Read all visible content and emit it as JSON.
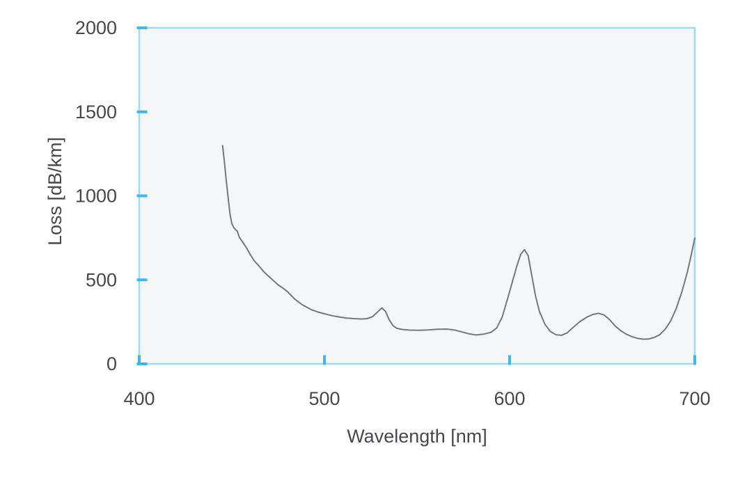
{
  "chart_data": {
    "type": "line",
    "title": "",
    "xlabel": "Wavelength [nm]",
    "ylabel": "Loss [dB/km]",
    "xlim": [
      400,
      700
    ],
    "ylim": [
      0,
      2000
    ],
    "x_ticks": [
      400,
      500,
      600,
      700
    ],
    "y_ticks": [
      0,
      500,
      1000,
      1500,
      2000
    ],
    "grid": false,
    "legend": false,
    "colors": {
      "plot_background": "#f5f6f8",
      "axis_border": "#9edcf5",
      "tick_mark": "#3db7ec",
      "curve": "#76777a",
      "text": "#47484e",
      "page_background": "#ffffff"
    },
    "series": [
      {
        "name": "fiber-attenuation-loss",
        "points": [
          [
            445,
            1300
          ],
          [
            446,
            1200
          ],
          [
            447,
            1090
          ],
          [
            448,
            990
          ],
          [
            449,
            893
          ],
          [
            450,
            835
          ],
          [
            451,
            812
          ],
          [
            452,
            800
          ],
          [
            453,
            788
          ],
          [
            454,
            755
          ],
          [
            456,
            722
          ],
          [
            458,
            688
          ],
          [
            460,
            650
          ],
          [
            462,
            615
          ],
          [
            465,
            578
          ],
          [
            467,
            552
          ],
          [
            469,
            530
          ],
          [
            472,
            500
          ],
          [
            475,
            470
          ],
          [
            478,
            448
          ],
          [
            480,
            430
          ],
          [
            482,
            408
          ],
          [
            484,
            385
          ],
          [
            486,
            368
          ],
          [
            488,
            352
          ],
          [
            490,
            340
          ],
          [
            493,
            322
          ],
          [
            496,
            310
          ],
          [
            500,
            298
          ],
          [
            504,
            287
          ],
          [
            508,
            279
          ],
          [
            512,
            273
          ],
          [
            516,
            269
          ],
          [
            520,
            267
          ],
          [
            523,
            269
          ],
          [
            526,
            281
          ],
          [
            529,
            312
          ],
          [
            531,
            333
          ],
          [
            533,
            312
          ],
          [
            535,
            262
          ],
          [
            537,
            228
          ],
          [
            539,
            212
          ],
          [
            542,
            205
          ],
          [
            546,
            201
          ],
          [
            551,
            200
          ],
          [
            556,
            202
          ],
          [
            561,
            206
          ],
          [
            566,
            207
          ],
          [
            570,
            202
          ],
          [
            574,
            191
          ],
          [
            578,
            179
          ],
          [
            582,
            172
          ],
          [
            586,
            177
          ],
          [
            590,
            188
          ],
          [
            593,
            213
          ],
          [
            596,
            280
          ],
          [
            599,
            390
          ],
          [
            602,
            508
          ],
          [
            604,
            585
          ],
          [
            606,
            652
          ],
          [
            608,
            680
          ],
          [
            610,
            645
          ],
          [
            612,
            525
          ],
          [
            614,
            405
          ],
          [
            616,
            315
          ],
          [
            619,
            237
          ],
          [
            622,
            193
          ],
          [
            625,
            173
          ],
          [
            628,
            170
          ],
          [
            631,
            184
          ],
          [
            634,
            214
          ],
          [
            638,
            252
          ],
          [
            642,
            280
          ],
          [
            645,
            294
          ],
          [
            648,
            301
          ],
          [
            651,
            291
          ],
          [
            654,
            263
          ],
          [
            657,
            226
          ],
          [
            660,
            197
          ],
          [
            663,
            177
          ],
          [
            666,
            162
          ],
          [
            669,
            152
          ],
          [
            672,
            147
          ],
          [
            675,
            148
          ],
          [
            678,
            157
          ],
          [
            681,
            173
          ],
          [
            684,
            206
          ],
          [
            687,
            256
          ],
          [
            690,
            330
          ],
          [
            693,
            428
          ],
          [
            696,
            548
          ],
          [
            698,
            645
          ],
          [
            700,
            748
          ]
        ]
      }
    ]
  }
}
